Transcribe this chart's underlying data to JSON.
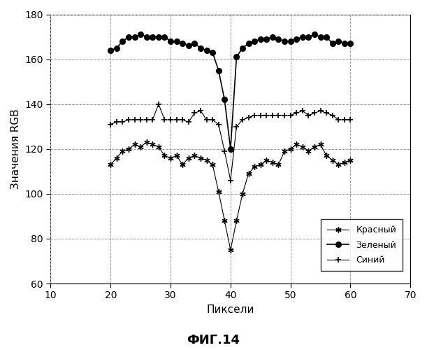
{
  "title": "ФИГ.14",
  "xlabel": "Пиксели",
  "ylabel": "Значения RGB",
  "xlim": [
    10,
    70
  ],
  "ylim": [
    60,
    180
  ],
  "xticks": [
    10,
    20,
    30,
    40,
    50,
    60,
    70
  ],
  "yticks": [
    60,
    80,
    100,
    120,
    140,
    160,
    180
  ],
  "legend_labels": [
    "Красный",
    "Зеленый",
    "Синий"
  ],
  "red_x": [
    20,
    21,
    22,
    23,
    24,
    25,
    26,
    27,
    28,
    29,
    30,
    31,
    32,
    33,
    34,
    35,
    36,
    37,
    38,
    39,
    40,
    41,
    42,
    43,
    44,
    45,
    46,
    47,
    48,
    49,
    50,
    51,
    52,
    53,
    54,
    55,
    56,
    57,
    58,
    59,
    60
  ],
  "red_y": [
    113,
    116,
    119,
    120,
    122,
    121,
    123,
    122,
    121,
    117,
    116,
    117,
    113,
    116,
    117,
    116,
    115,
    113,
    101,
    88,
    75,
    88,
    100,
    109,
    112,
    113,
    115,
    114,
    113,
    119,
    120,
    122,
    121,
    119,
    121,
    122,
    117,
    115,
    113,
    114,
    115
  ],
  "green_x": [
    20,
    21,
    22,
    23,
    24,
    25,
    26,
    27,
    28,
    29,
    30,
    31,
    32,
    33,
    34,
    35,
    36,
    37,
    38,
    39,
    40,
    41,
    42,
    43,
    44,
    45,
    46,
    47,
    48,
    49,
    50,
    51,
    52,
    53,
    54,
    55,
    56,
    57,
    58,
    59,
    60
  ],
  "green_y": [
    164,
    165,
    168,
    170,
    170,
    171,
    170,
    170,
    170,
    170,
    168,
    168,
    167,
    166,
    167,
    165,
    164,
    163,
    155,
    142,
    120,
    161,
    165,
    167,
    168,
    169,
    169,
    170,
    169,
    168,
    168,
    169,
    170,
    170,
    171,
    170,
    170,
    167,
    168,
    167,
    167
  ],
  "blue_x": [
    20,
    21,
    22,
    23,
    24,
    25,
    26,
    27,
    28,
    29,
    30,
    31,
    32,
    33,
    34,
    35,
    36,
    37,
    38,
    39,
    40,
    41,
    42,
    43,
    44,
    45,
    46,
    47,
    48,
    49,
    50,
    51,
    52,
    53,
    54,
    55,
    56,
    57,
    58,
    59,
    60
  ],
  "blue_y": [
    131,
    132,
    132,
    133,
    133,
    133,
    133,
    133,
    140,
    133,
    133,
    133,
    133,
    132,
    136,
    137,
    133,
    133,
    131,
    119,
    106,
    130,
    133,
    134,
    135,
    135,
    135,
    135,
    135,
    135,
    135,
    136,
    137,
    135,
    136,
    137,
    136,
    135,
    133,
    133,
    133
  ],
  "line_color": "#000000",
  "background_color": "#ffffff",
  "grid_color": "#999999"
}
